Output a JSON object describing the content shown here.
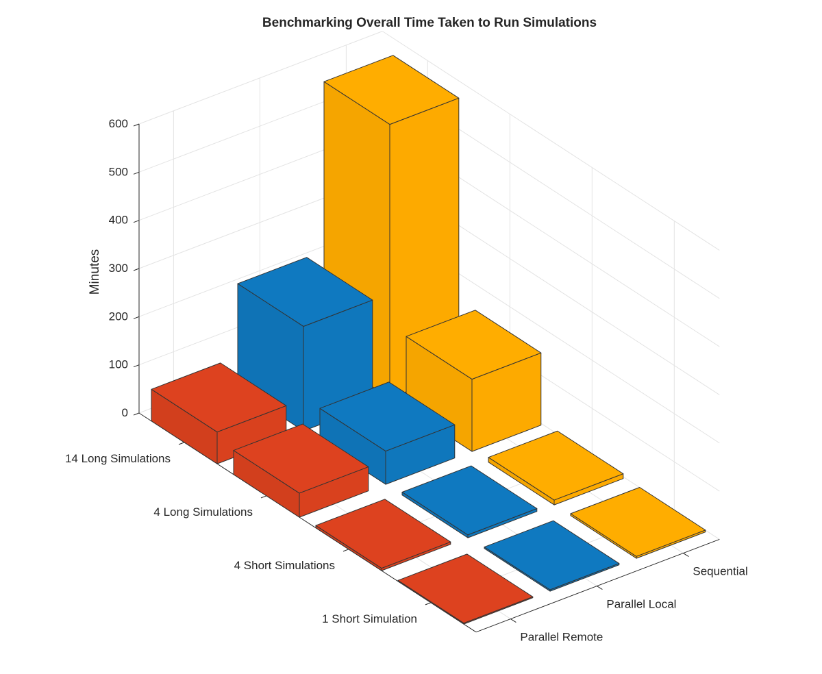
{
  "chart_data": {
    "type": "bar3d",
    "title": "Benchmarking Overall Time Taken to Run Simulations",
    "zlabel": "Minutes",
    "zlim": [
      0,
      600
    ],
    "zticks": [
      0,
      100,
      200,
      300,
      400,
      500,
      600
    ],
    "categories": [
      "14 Long Simulations",
      "4 Long Simulations",
      "4 Short Simulations",
      "1 Short Simulation"
    ],
    "series": [
      {
        "name": "Parallel Remote",
        "color": "#D9411E",
        "values": [
          66,
          50,
          5,
          2
        ]
      },
      {
        "name": "Parallel Local",
        "color": "#0F77BC",
        "values": [
          217,
          69,
          6,
          3
        ]
      },
      {
        "name": "Sequential",
        "color": "#FDAA00",
        "values": [
          568,
          150,
          10,
          4
        ]
      }
    ],
    "grid": true
  }
}
